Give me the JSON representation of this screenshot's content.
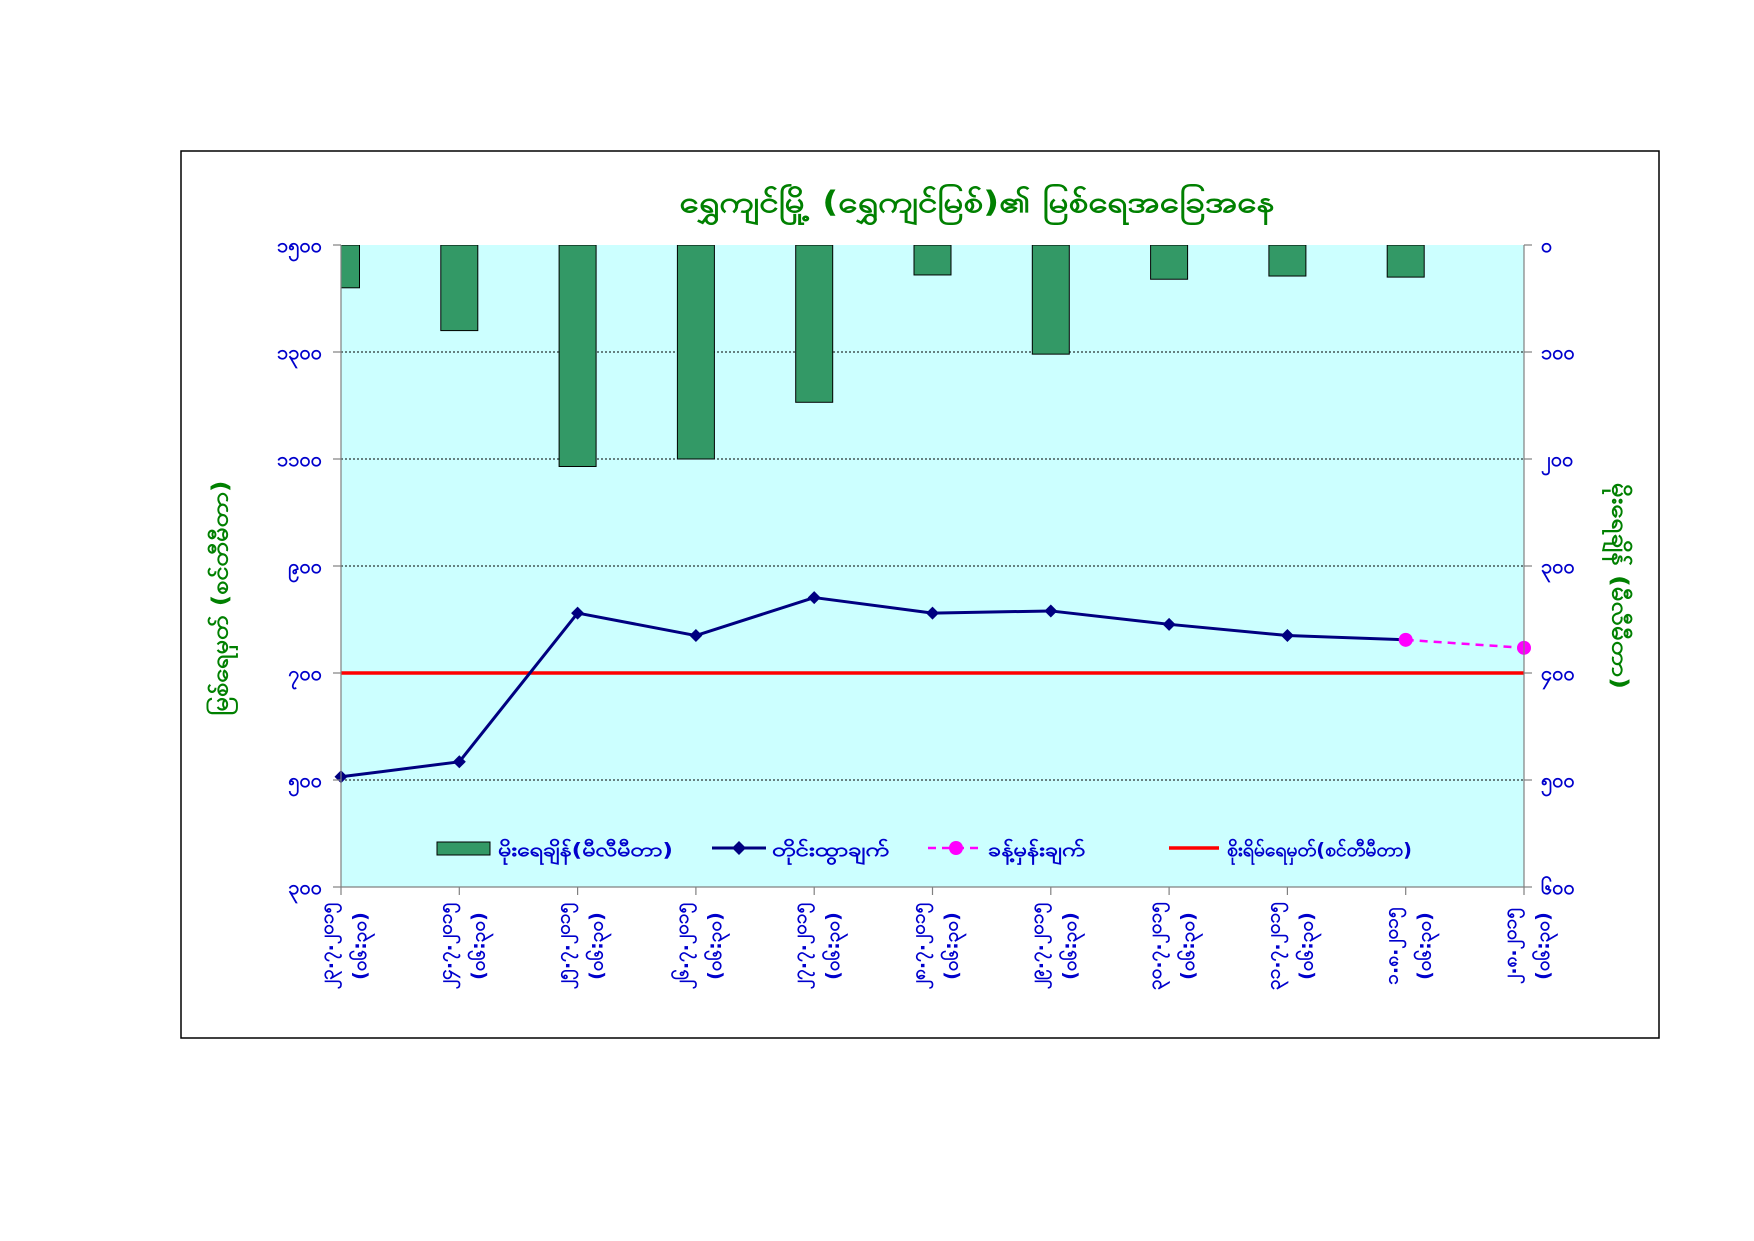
{
  "chart_data": {
    "type": "line",
    "title": "ရွှေကျင်မြို့ (ရွှေကျင်မြစ်)၏ မြစ်ရေအခြေအနေ",
    "categories": [
      "၂၃.၇.၂၀၁၅",
      "၂၄.၇.၂၀၁၅",
      "၂၅.၇.၂၀၁၅",
      "၂၆.၇.၂၀၁၅",
      "၂၇.၇.၂၀၁၅",
      "၂၈.၇.၂၀၁၅",
      "၂၉.၇.၂၀၁၅",
      "၃၀.၇.၂၀၁၅",
      "၃၁.၇.၂၀၁၅",
      "၁.၈.၂၀၁၅",
      "၂.၈.၂၀၁၅"
    ],
    "category_times": [
      "(၀၆:၃၀)",
      "(၀၆:၃၀)",
      "(၀၆:၃၀)",
      "(၀၆:၃၀)",
      "(၀၆:၃၀)",
      "(၀၆:၃၀)",
      "(၀၆:၃၀)",
      "(၀၆:၃၀)",
      "(၀၆:၃၀)",
      "(၀၆:၃၀)",
      "(၀၆:၃၀)"
    ],
    "ylabel": "မြစ်ရေမှတ် (စင်တီမီတာ)",
    "ylim": [
      300,
      1500
    ],
    "yticks": [
      1500,
      1300,
      1100,
      900,
      700,
      500,
      300
    ],
    "ytick_labels": [
      "၁၅၀၀",
      "၁၃၀၀",
      "၁၁၀၀",
      "၉၀၀",
      "၇၀၀",
      "၅၀၀",
      "၃၀၀"
    ],
    "y2label": "မိုးရေချိန် (မီလီမီတာ)",
    "y2lim": [
      0,
      600
    ],
    "y2_reversed": true,
    "y2ticks": [
      0,
      100,
      200,
      300,
      400,
      500,
      600
    ],
    "y2tick_labels": [
      "၀",
      "၁၀၀",
      "၂၀၀",
      "၃၀၀",
      "၄၀၀",
      "၅၀၀",
      "၆၀၀"
    ],
    "series": [
      {
        "name": "မိုးရေချိန်(မီလီမီတာ)",
        "type": "bar",
        "axis": "right",
        "color": "#339966",
        "values": [
          40,
          80,
          207,
          200,
          147,
          28,
          102,
          32,
          29,
          30,
          null
        ]
      },
      {
        "name": "တိုင်းထွာချက်",
        "type": "line",
        "axis": "left",
        "color": "#000080",
        "marker": "diamond",
        "line_style": "solid",
        "values": [
          506,
          534,
          812,
          770,
          841,
          812,
          816,
          791,
          770,
          762,
          null
        ]
      },
      {
        "name": "ခန့်မှန်းချက်",
        "type": "line",
        "axis": "left",
        "color": "#FF00FF",
        "marker": "circle",
        "line_style": "dashed",
        "values": [
          null,
          null,
          null,
          null,
          null,
          null,
          null,
          null,
          null,
          762,
          747
        ]
      },
      {
        "name": "စိုးရိမ်ရေမှတ်(စင်တီမီတာ)",
        "type": "line",
        "axis": "left",
        "color": "#FF0000",
        "marker": "none",
        "line_style": "solid",
        "values": [
          700,
          700,
          700,
          700,
          700,
          700,
          700,
          700,
          700,
          700,
          700
        ]
      }
    ],
    "grid": true,
    "legend": "bottom",
    "plot_background": "#CCFFFF"
  }
}
